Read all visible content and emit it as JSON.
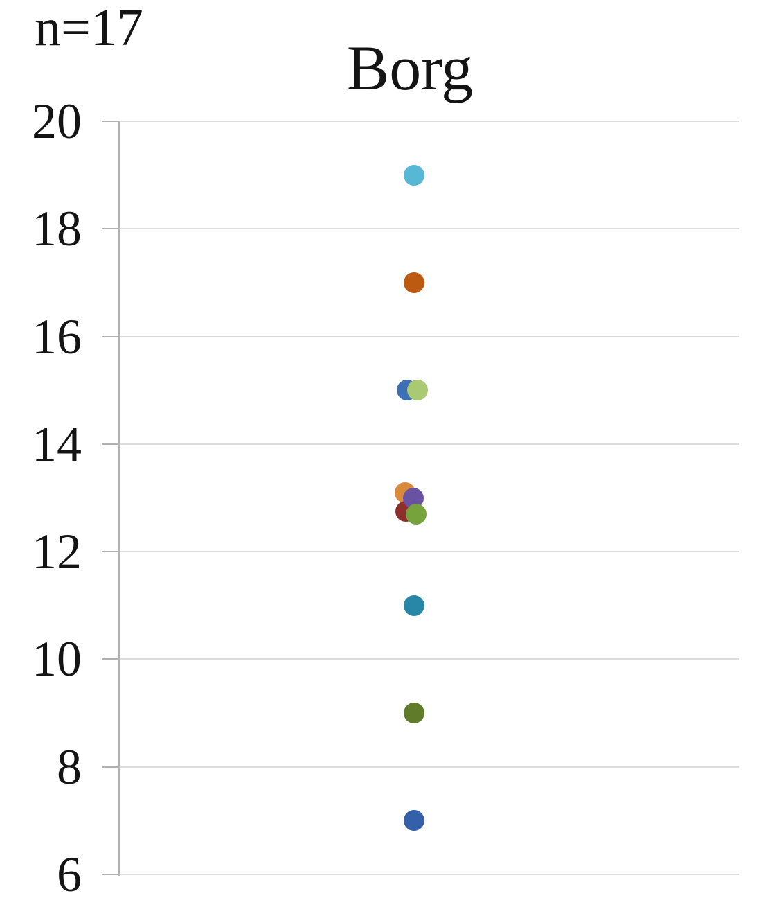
{
  "figure": {
    "annotation": "n=17",
    "title": "Borg"
  },
  "chart_data": {
    "type": "scatter",
    "title": "Borg",
    "annotation": "n=17",
    "xlabel": "",
    "ylabel": "",
    "ylim": [
      6,
      20
    ],
    "yticks": [
      20,
      18,
      16,
      14,
      12,
      10,
      8,
      6
    ],
    "grid": true,
    "legend": false,
    "description": "Single vertical strip of Borg rating dots for n=17 participants; overlapping values hide some of the 17 points",
    "points": [
      {
        "y": 19,
        "color": "#57b7d4",
        "name": "sky-blue-dot",
        "dx": 0
      },
      {
        "y": 17,
        "color": "#bc5a12",
        "name": "burnt-orange-dot",
        "dx": 0
      },
      {
        "y": 15,
        "color": "#3c6fb4",
        "name": "blue-dot",
        "dx": -10
      },
      {
        "y": 15,
        "color": "#a9c972",
        "name": "light-green-dot",
        "dx": 5
      },
      {
        "y": 13.1,
        "color": "#d8893a",
        "name": "orange-dot",
        "dx": -13
      },
      {
        "y": 12.75,
        "color": "#8d2f2d",
        "name": "dark-red-dot",
        "dx": -12
      },
      {
        "y": 13.0,
        "color": "#6852a1",
        "name": "purple-dot",
        "dx": -1
      },
      {
        "y": 12.7,
        "color": "#77a33d",
        "name": "green-dot",
        "dx": 3
      },
      {
        "y": 11,
        "color": "#2886a6",
        "name": "teal-dot",
        "dx": 0
      },
      {
        "y": 9,
        "color": "#607b2a",
        "name": "olive-dot",
        "dx": 0
      },
      {
        "y": 7,
        "color": "#3360a9",
        "name": "medium-blue-dot",
        "dx": 0
      }
    ]
  }
}
